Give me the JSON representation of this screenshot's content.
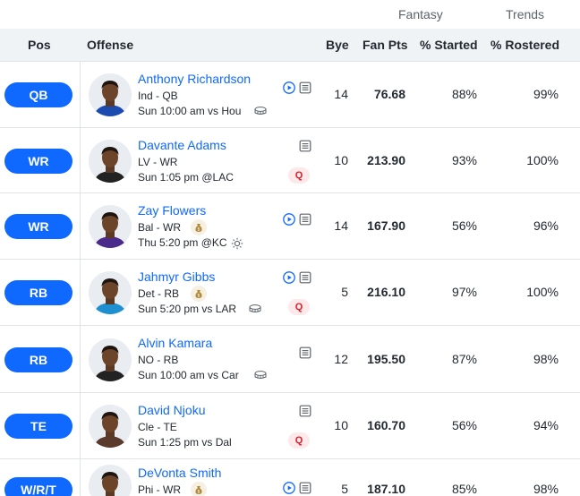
{
  "group_headers": {
    "fantasy": "Fantasy",
    "trends": "Trends"
  },
  "columns": {
    "pos": "Pos",
    "offense": "Offense",
    "bye": "Bye",
    "fan_pts": "Fan Pts",
    "pct_started": "% Started",
    "pct_rostered": "% Rostered"
  },
  "players": [
    {
      "pos": "QB",
      "name": "Anthony Richardson",
      "team_pos": "Ind - QB",
      "game": "Sun 10:00 am vs Hou",
      "game_icon": "stadium-icon",
      "money_icon": false,
      "video": true,
      "notes": true,
      "status": "",
      "bye": "14",
      "fan_pts": "76.68",
      "started": "88%",
      "rostered": "99%",
      "jersey_color": "#1c4bb0"
    },
    {
      "pos": "WR",
      "name": "Davante Adams",
      "team_pos": "LV - WR",
      "game": "Sun 1:05 pm @LAC",
      "game_icon": "",
      "money_icon": false,
      "video": false,
      "notes": true,
      "status": "Q",
      "bye": "10",
      "fan_pts": "213.90",
      "started": "93%",
      "rostered": "100%",
      "jersey_color": "#222222"
    },
    {
      "pos": "WR",
      "name": "Zay Flowers",
      "team_pos": "Bal - WR",
      "game": "Thu 5:20 pm @KC",
      "game_icon": "sun-icon",
      "money_icon": true,
      "video": true,
      "notes": true,
      "status": "",
      "bye": "14",
      "fan_pts": "167.90",
      "started": "56%",
      "rostered": "96%",
      "jersey_color": "#4a2a8a"
    },
    {
      "pos": "RB",
      "name": "Jahmyr Gibbs",
      "team_pos": "Det - RB",
      "game": "Sun 5:20 pm vs LAR",
      "game_icon": "stadium-icon",
      "money_icon": true,
      "video": true,
      "notes": true,
      "status": "Q",
      "bye": "5",
      "fan_pts": "216.10",
      "started": "97%",
      "rostered": "100%",
      "jersey_color": "#1e8fd0"
    },
    {
      "pos": "RB",
      "name": "Alvin Kamara",
      "team_pos": "NO - RB",
      "game": "Sun 10:00 am vs Car",
      "game_icon": "stadium-icon",
      "money_icon": false,
      "video": false,
      "notes": true,
      "status": "",
      "bye": "12",
      "fan_pts": "195.50",
      "started": "87%",
      "rostered": "98%",
      "jersey_color": "#222222"
    },
    {
      "pos": "TE",
      "name": "David Njoku",
      "team_pos": "Cle - TE",
      "game": "Sun 1:25 pm vs Dal",
      "game_icon": "",
      "money_icon": false,
      "video": false,
      "notes": true,
      "status": "Q",
      "bye": "10",
      "fan_pts": "160.70",
      "started": "56%",
      "rostered": "94%",
      "jersey_color": "#5a3a2a"
    },
    {
      "pos": "W/R/T",
      "name": "DeVonta Smith",
      "team_pos": "Phi - WR",
      "game": "",
      "game_icon": "",
      "money_icon": true,
      "video": true,
      "notes": true,
      "status": "",
      "bye": "5",
      "fan_pts": "187.10",
      "started": "85%",
      "rostered": "98%",
      "jersey_color": "#1f5f5a"
    }
  ]
}
